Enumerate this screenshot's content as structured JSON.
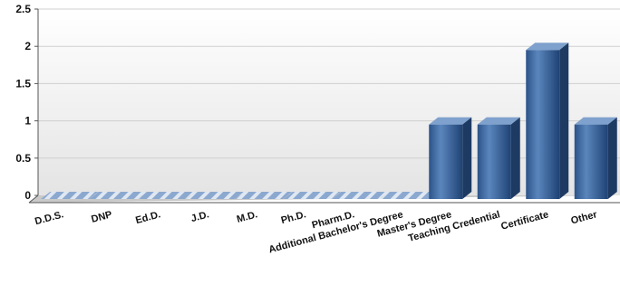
{
  "chart_data": {
    "type": "bar",
    "categories": [
      "D.D.S.",
      "DNP",
      "Ed.D.",
      "J.D.",
      "M.D.",
      "Ph.D.",
      "Pharm.D.",
      "Additional Bachelor's Degree",
      "Master's Degree",
      "Teaching Credential",
      "Certificate",
      "Other"
    ],
    "values": [
      0,
      0,
      0,
      0,
      0,
      0,
      0,
      0,
      1,
      1,
      2,
      1
    ],
    "yticks": [
      "0",
      "0.5",
      "1",
      "1.5",
      "2",
      "2.5"
    ],
    "ylim": [
      0,
      2.5
    ],
    "title": "",
    "xlabel": "",
    "ylabel": "",
    "grid": true,
    "legend": "none",
    "bar_color": "#3f6da6",
    "zero_bar_color": "#8ba8cf"
  }
}
